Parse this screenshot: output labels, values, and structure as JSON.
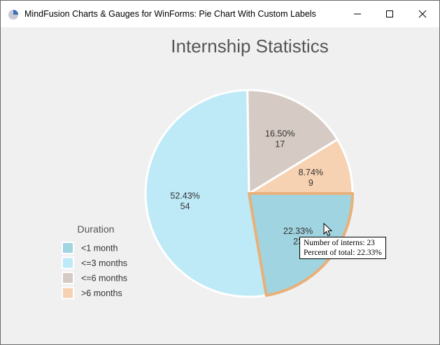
{
  "window": {
    "title": "MindFusion Charts & Gauges for WinForms: Pie Chart With Custom Labels",
    "app_icon": "pie-chart-icon",
    "controls": [
      "minimize-icon",
      "maximize-icon",
      "close-icon"
    ]
  },
  "chart_data": {
    "type": "pie",
    "title": "Internship Statistics",
    "categories": [
      "<1 month",
      "<=3 months",
      "<=6 months",
      ">6 months"
    ],
    "values": [
      23,
      54,
      17,
      9
    ],
    "percent_labels": [
      "22.33%",
      "52.43%",
      "16.50%",
      "8.74%"
    ],
    "value_labels": [
      "23",
      "54",
      "17",
      "9"
    ],
    "colors": [
      "#a0d4e0",
      "#bdeaf6",
      "#d6cbc4",
      "#f6d2b2"
    ],
    "highlight_color": "#e8b07a",
    "slice_border_color": "#ffffff",
    "highlighted_category": "<1 month",
    "legend": {
      "title": "Duration",
      "placement": "bottom-left"
    }
  },
  "tooltip": {
    "line1": "Number of interns: 23",
    "line2": "Percent of total: 22.33%"
  }
}
